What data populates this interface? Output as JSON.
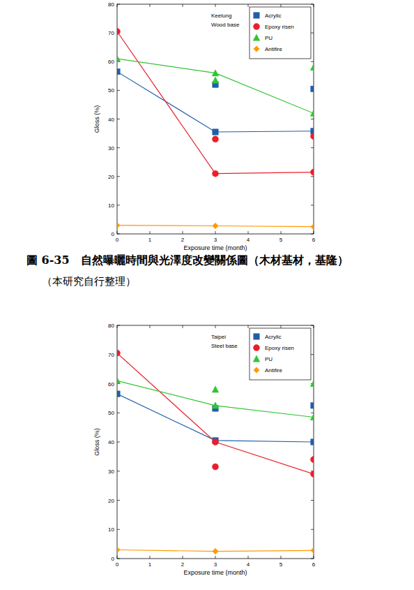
{
  "chart_data": [
    {
      "type": "line",
      "annotations": [
        "Keelung",
        "Wood base"
      ],
      "x_label": "Exposure time (month)",
      "y_label": "Gloss (%)",
      "x": [
        0,
        3,
        6
      ],
      "xlim": [
        0,
        6
      ],
      "xticks": [
        0,
        1,
        2,
        3,
        4,
        5,
        6
      ],
      "ylim": [
        0,
        80
      ],
      "yticks": [
        0,
        10,
        20,
        30,
        40,
        50,
        60,
        70,
        80
      ],
      "legend": "upper right",
      "series": [
        {
          "name": "Acrylic",
          "color": "#1f5fa8",
          "marker": "square",
          "values": [
            56.5,
            35.5,
            35.8
          ],
          "extra_points": [
            null,
            52,
            50.5
          ]
        },
        {
          "name": "Epoxy risen",
          "color": "#e8202a",
          "marker": "circle",
          "values": [
            70.5,
            21,
            21.5
          ],
          "extra_points": [
            null,
            33,
            34
          ]
        },
        {
          "name": "PU",
          "color": "#33c433",
          "marker": "triangle",
          "values": [
            61,
            56,
            42
          ],
          "extra_points": [
            null,
            53.5,
            58
          ]
        },
        {
          "name": "Antifire",
          "color": "#ff9900",
          "marker": "diamond",
          "values": [
            3,
            2.8,
            2.5
          ],
          "extra_points": [
            null,
            null,
            null
          ]
        }
      ]
    },
    {
      "type": "line",
      "annotations": [
        "Taipei",
        "Steel base"
      ],
      "x_label": "Exposure time (month)",
      "y_label": "Gloss (%)",
      "x": [
        0,
        3,
        6
      ],
      "xlim": [
        0,
        6
      ],
      "xticks": [
        0,
        1,
        2,
        3,
        4,
        5,
        6
      ],
      "ylim": [
        0,
        80
      ],
      "yticks": [
        0,
        10,
        20,
        30,
        40,
        50,
        60,
        70,
        80
      ],
      "legend": "upper right",
      "series": [
        {
          "name": "Acrylic",
          "color": "#1f5fa8",
          "marker": "square",
          "values": [
            56.5,
            40.5,
            40
          ],
          "extra_points": [
            null,
            51.5,
            52.5
          ]
        },
        {
          "name": "Epoxy risen",
          "color": "#e8202a",
          "marker": "circle",
          "values": [
            70.5,
            40,
            29
          ],
          "extra_points": [
            null,
            31.5,
            34
          ]
        },
        {
          "name": "PU",
          "color": "#33c433",
          "marker": "triangle",
          "values": [
            61,
            52.5,
            48.5
          ],
          "extra_points": [
            null,
            58,
            60
          ]
        },
        {
          "name": "Antifire",
          "color": "#ff9900",
          "marker": "diamond",
          "values": [
            3,
            2.5,
            2.8
          ],
          "extra_points": [
            null,
            null,
            null
          ]
        }
      ]
    }
  ],
  "captions": [
    "圖 6-35　自然曝曬時間與光澤度改變關係圖（木材基材，基隆）",
    "（本研究自行整理）"
  ]
}
